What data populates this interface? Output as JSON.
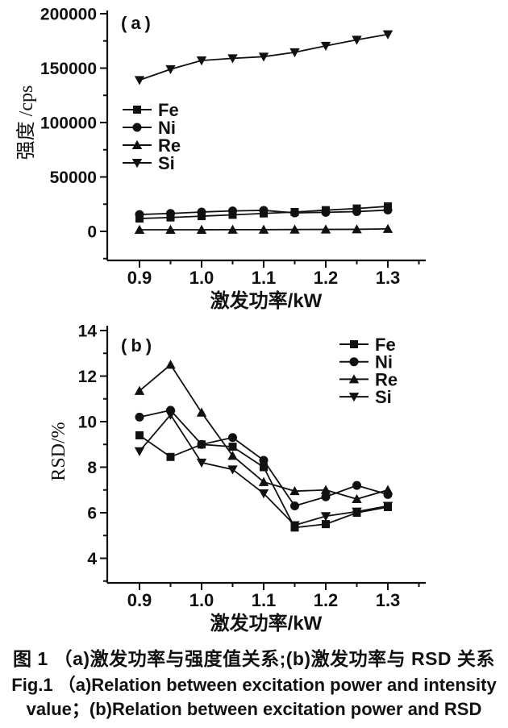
{
  "figure": {
    "caption_cn": "图 1 （a)激发功率与强度值关系;(b)激发功率与 RSD 关系",
    "caption_en_1": "Fig.1 （a)Relation between excitation power and intensity",
    "caption_en_2": "value；(b)Relation between excitation power and RSD"
  },
  "colors": {
    "line": "#111111",
    "text": "#111111",
    "background": "#ffffff"
  },
  "chart_data": [
    {
      "id": "a",
      "type": "line",
      "panel_label": "(a)",
      "xlabel": "激发功率/kW",
      "ylabel": "强度 /cps",
      "xlim": [
        0.85,
        1.36
      ],
      "ylim": [
        0,
        200000
      ],
      "grid": false,
      "legend_position": "middle-left-inside",
      "x": [
        0.9,
        0.95,
        1.0,
        1.05,
        1.1,
        1.15,
        1.2,
        1.25,
        1.3
      ],
      "x_ticks": {
        "major": [
          {
            "value": 0.9,
            "label": "0.9"
          },
          {
            "value": 1.0,
            "label": "1.0"
          },
          {
            "value": 1.1,
            "label": "1.1"
          },
          {
            "value": 1.2,
            "label": "1.2"
          },
          {
            "value": 1.3,
            "label": "1.3"
          }
        ],
        "minor": [
          0.95,
          1.05,
          1.15,
          1.25,
          1.35
        ]
      },
      "y_ticks": {
        "major": [
          {
            "value": 0,
            "label": "0"
          },
          {
            "value": 50000,
            "label": "50000"
          },
          {
            "value": 100000,
            "label": "100000"
          },
          {
            "value": 150000,
            "label": "150000"
          },
          {
            "value": 200000,
            "label": "200000"
          }
        ],
        "minor": [
          -25000,
          25000,
          75000,
          125000,
          175000
        ]
      },
      "series": [
        {
          "name": "Fe",
          "marker": "square",
          "values": [
            11800,
            12800,
            14000,
            15200,
            16500,
            17800,
            19500,
            21000,
            23000
          ]
        },
        {
          "name": "Ni",
          "marker": "circle",
          "values": [
            15500,
            16500,
            17800,
            18800,
            19300,
            17000,
            17500,
            18200,
            19600
          ]
        },
        {
          "name": "Re",
          "marker": "triangle-up",
          "values": [
            1500,
            1500,
            1500,
            1600,
            1600,
            1700,
            1800,
            1900,
            2300
          ]
        },
        {
          "name": "Si",
          "marker": "triangle-down",
          "values": [
            139000,
            149000,
            157000,
            159000,
            160500,
            164500,
            170500,
            176000,
            181000
          ]
        }
      ]
    },
    {
      "id": "b",
      "type": "line",
      "panel_label": "(b)",
      "xlabel": "激发功率/kW",
      "ylabel": "RSD/%",
      "xlim": [
        0.85,
        1.36
      ],
      "ylim": [
        4,
        14
      ],
      "grid": false,
      "legend_position": "top-right-inside",
      "x": [
        0.9,
        0.95,
        1.0,
        1.05,
        1.1,
        1.15,
        1.2,
        1.25,
        1.3
      ],
      "x_ticks": {
        "major": [
          {
            "value": 0.9,
            "label": "0.9"
          },
          {
            "value": 1.0,
            "label": "1.0"
          },
          {
            "value": 1.1,
            "label": "1.1"
          },
          {
            "value": 1.2,
            "label": "1.2"
          },
          {
            "value": 1.3,
            "label": "1.3"
          }
        ],
        "minor": [
          0.95,
          1.05,
          1.15,
          1.25,
          1.35
        ]
      },
      "y_ticks": {
        "major": [
          {
            "value": 4,
            "label": "4"
          },
          {
            "value": 6,
            "label": "6"
          },
          {
            "value": 8,
            "label": "8"
          },
          {
            "value": 10,
            "label": "10"
          },
          {
            "value": 12,
            "label": "12"
          },
          {
            "value": 14,
            "label": "14"
          }
        ],
        "minor": [
          3,
          5,
          7,
          9,
          11,
          13
        ]
      },
      "series": [
        {
          "name": "Fe",
          "marker": "square",
          "values": [
            9.4,
            8.45,
            9.0,
            8.9,
            8.0,
            5.35,
            5.5,
            6.0,
            6.25
          ]
        },
        {
          "name": "Ni",
          "marker": "circle",
          "values": [
            10.2,
            10.5,
            9.0,
            9.3,
            8.3,
            6.3,
            6.7,
            7.2,
            6.8
          ]
        },
        {
          "name": "Re",
          "marker": "triangle-up",
          "values": [
            11.35,
            12.5,
            10.4,
            8.5,
            7.35,
            6.95,
            7.0,
            6.6,
            7.0
          ]
        },
        {
          "name": "Si",
          "marker": "triangle-down",
          "values": [
            8.7,
            10.3,
            8.2,
            7.9,
            6.85,
            5.45,
            5.85,
            6.05,
            6.3
          ]
        }
      ]
    }
  ]
}
